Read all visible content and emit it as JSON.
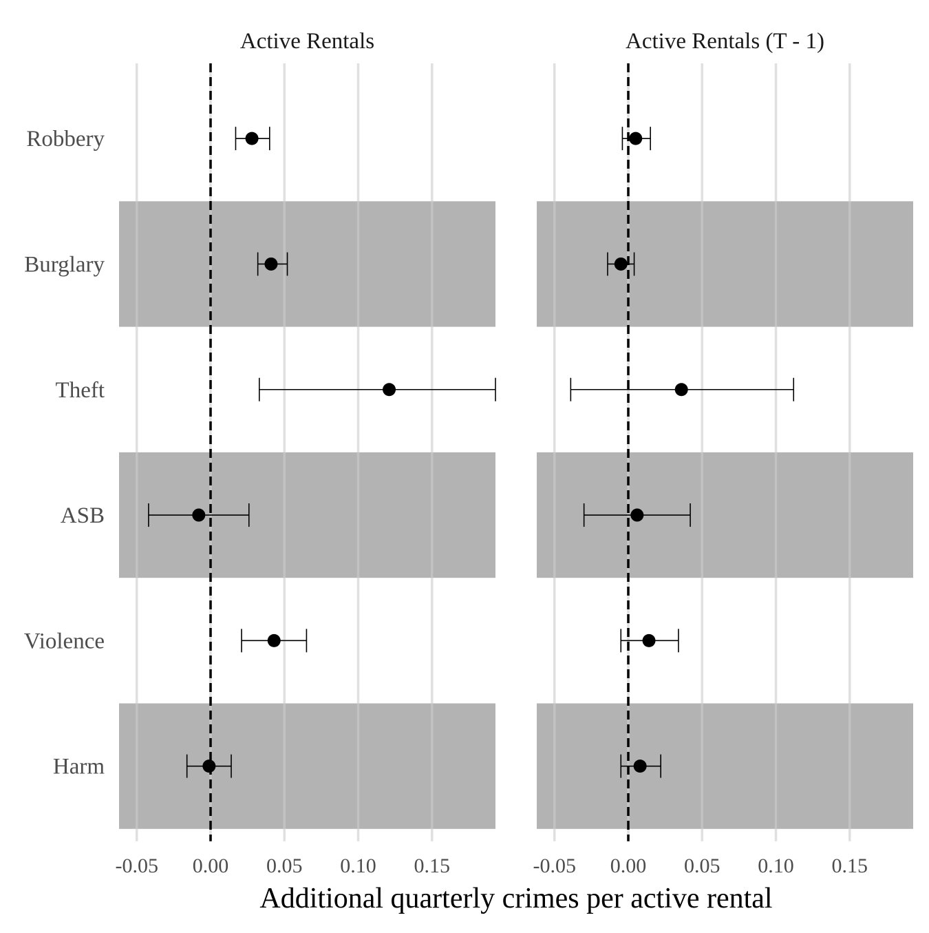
{
  "chart_data": {
    "type": "scatter",
    "subtype": "faceted point estimates with confidence intervals",
    "xlabel": "Additional quarterly crimes per active rental",
    "ylabel": "",
    "xlim": [
      -0.062,
      0.193
    ],
    "x_ticks": [
      "-0.05",
      "0.00",
      "0.05",
      "0.10",
      "0.15"
    ],
    "x_tick_values": [
      -0.05,
      0.0,
      0.05,
      0.1,
      0.15
    ],
    "reference_line": 0.0,
    "reference_line_style": "dashed",
    "categories": [
      "Robbery",
      "Burglary",
      "Theft",
      "ASB",
      "Violence",
      "Harm"
    ],
    "shaded_rows": [
      "Burglary",
      "ASB",
      "Harm"
    ],
    "colors": {
      "point": "#000000",
      "shade": "#b3b3b3",
      "grid": "#e6e6e6"
    },
    "grid": true,
    "legend": false,
    "facets": [
      {
        "title": "Active Rentals",
        "estimates": [
          {
            "category": "Robbery",
            "estimate": 0.028,
            "low": 0.017,
            "high": 0.04
          },
          {
            "category": "Burglary",
            "estimate": 0.041,
            "low": 0.032,
            "high": 0.052
          },
          {
            "category": "Theft",
            "estimate": 0.121,
            "low": 0.033,
            "high": 0.193
          },
          {
            "category": "ASB",
            "estimate": -0.008,
            "low": -0.042,
            "high": 0.026
          },
          {
            "category": "Violence",
            "estimate": 0.043,
            "low": 0.021,
            "high": 0.065
          },
          {
            "category": "Harm",
            "estimate": -0.001,
            "low": -0.016,
            "high": 0.014
          }
        ]
      },
      {
        "title": "Active Rentals (T - 1)",
        "estimates": [
          {
            "category": "Robbery",
            "estimate": 0.005,
            "low": -0.004,
            "high": 0.015
          },
          {
            "category": "Burglary",
            "estimate": -0.005,
            "low": -0.014,
            "high": 0.004
          },
          {
            "category": "Theft",
            "estimate": 0.036,
            "low": -0.039,
            "high": 0.112
          },
          {
            "category": "ASB",
            "estimate": 0.006,
            "low": -0.03,
            "high": 0.042
          },
          {
            "category": "Violence",
            "estimate": 0.014,
            "low": -0.005,
            "high": 0.034
          },
          {
            "category": "Harm",
            "estimate": 0.008,
            "low": -0.005,
            "high": 0.022
          }
        ]
      }
    ]
  }
}
